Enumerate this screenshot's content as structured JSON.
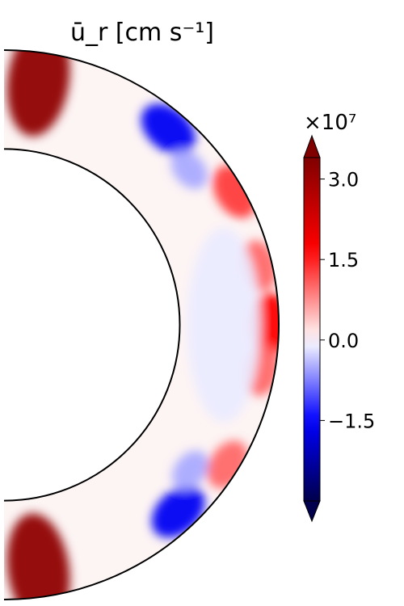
{
  "chart_data": {
    "type": "heatmap",
    "title": "ū_r [cm s⁻¹]",
    "geometry": "meridional-half-annulus",
    "r_inner_fraction": 0.64,
    "colormap": [
      "#00004c",
      "#0000ff",
      "#ffffff",
      "#ff0000",
      "#800000"
    ],
    "colorbar": {
      "multiplier": "×10⁷",
      "vmin": -3.0,
      "vmax": 3.4,
      "extend": "both",
      "ticks": [
        {
          "value": 3.0,
          "label": "3.0"
        },
        {
          "value": 1.5,
          "label": "1.5"
        },
        {
          "value": 0.0,
          "label": "0.0"
        },
        {
          "value": -1.5,
          "label": "−1.5"
        }
      ]
    },
    "features": [
      {
        "name": "north-polar-upflow",
        "lat_deg": 82,
        "r_frac": 0.9,
        "value": 3.2
      },
      {
        "name": "south-polar-upflow",
        "lat_deg": -82,
        "r_frac": 0.9,
        "value": 3.2
      },
      {
        "name": "northern-downflow",
        "lat_deg": 50,
        "r_frac": 0.93,
        "value": -1.6
      },
      {
        "name": "southern-downflow",
        "lat_deg": -47,
        "r_frac": 0.93,
        "value": -1.6
      },
      {
        "name": "equatorial-upflow",
        "lat_deg": 0,
        "r_frac": 0.97,
        "value": 1.7
      },
      {
        "name": "equatorial-upflow-upper",
        "lat_deg": 13,
        "r_frac": 0.95,
        "value": 1.0
      },
      {
        "name": "equatorial-upflow-lower",
        "lat_deg": -10,
        "r_frac": 0.95,
        "value": 1.0
      },
      {
        "name": "mid-lat-upflow-north",
        "lat_deg": 30,
        "r_frac": 0.97,
        "value": 1.3
      },
      {
        "name": "mid-lat-upflow-south",
        "lat_deg": -32,
        "r_frac": 0.96,
        "value": 1.0
      },
      {
        "name": "northern-downflow-patch",
        "lat_deg": 40,
        "r_frac": 0.88,
        "value": -0.5
      },
      {
        "name": "southern-downflow-patch",
        "lat_deg": -38,
        "r_frac": 0.86,
        "value": -0.5
      },
      {
        "name": "interior-weak-downflow",
        "lat_deg": 0,
        "r_frac": 0.8,
        "value": -0.12
      }
    ]
  }
}
